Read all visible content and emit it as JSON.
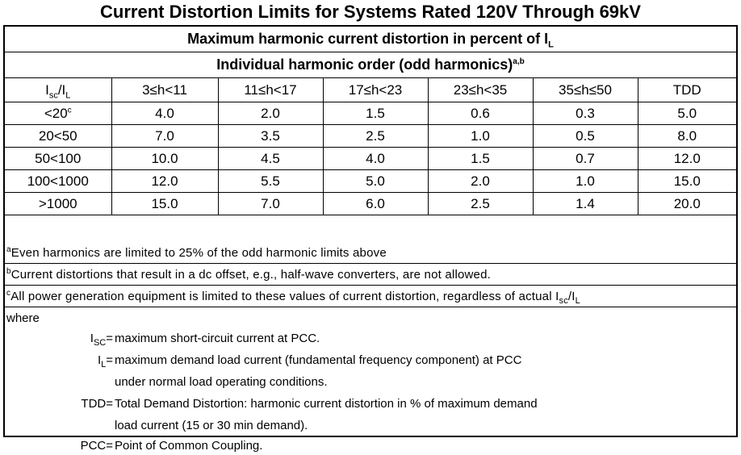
{
  "title": "Current Distortion Limits for Systems Rated 120V Through 69kV",
  "header1": {
    "text": "Maximum harmonic current distortion in percent of I",
    "sub": "L"
  },
  "header2": {
    "text": "Individual harmonic order (odd harmonics)",
    "sup": "a,b"
  },
  "columns": [
    {
      "main": "I",
      "sub": "sc",
      "rest": "/I",
      "sub2": "L"
    },
    {
      "main": "3≤h<11"
    },
    {
      "main": "11≤h<17"
    },
    {
      "main": "17≤h<23"
    },
    {
      "main": "23≤h<35"
    },
    {
      "main": "35≤h≤50"
    },
    {
      "main": "TDD"
    }
  ],
  "rows": [
    {
      "ratio": "<20",
      "sup": "c",
      "values": [
        "4.0",
        "2.0",
        "1.5",
        "0.6",
        "0.3",
        "5.0"
      ]
    },
    {
      "ratio": "20<50",
      "sup": "",
      "values": [
        "7.0",
        "3.5",
        "2.5",
        "1.0",
        "0.5",
        "8.0"
      ]
    },
    {
      "ratio": "50<100",
      "sup": "",
      "values": [
        "10.0",
        "4.5",
        "4.0",
        "1.5",
        "0.7",
        "12.0"
      ]
    },
    {
      "ratio": "100<1000",
      "sup": "",
      "values": [
        "12.0",
        "5.5",
        "5.0",
        "2.0",
        "1.0",
        "15.0"
      ]
    },
    {
      "ratio": ">1000",
      "sup": "",
      "values": [
        "15.0",
        "7.0",
        "6.0",
        "2.5",
        "1.4",
        "20.0"
      ]
    }
  ],
  "notes": {
    "a": {
      "mark": "a",
      "text": "Even harmonics are limited to 25% of the odd harmonic limits above"
    },
    "b": {
      "mark": "b",
      "text": "Current distortions that result in a dc offset, e.g., half-wave converters, are not allowed."
    },
    "c": {
      "mark": "c",
      "text": "All power generation equipment is limited to these values of current distortion, regardless of actual I",
      "sub": "sc",
      "mid": "/I",
      "sub2": "L"
    }
  },
  "definitions": {
    "where": "where",
    "isc": {
      "term": "I",
      "term_sub": "SC",
      "eq": "=",
      "text": "maximum short-circuit current at PCC."
    },
    "il": {
      "term": "I",
      "term_sub": "L",
      "eq": "=",
      "text": "maximum demand load current (fundamental frequency component) at PCC",
      "text2": "under normal load operating conditions."
    },
    "tdd": {
      "term": "TDD=",
      "text": "Total Demand Distortion: harmonic current distortion in % of maximum demand",
      "text2": "load current (15 or 30 min demand)."
    },
    "pcc": {
      "term": "PCC=",
      "text": "Point of Common Coupling."
    }
  }
}
